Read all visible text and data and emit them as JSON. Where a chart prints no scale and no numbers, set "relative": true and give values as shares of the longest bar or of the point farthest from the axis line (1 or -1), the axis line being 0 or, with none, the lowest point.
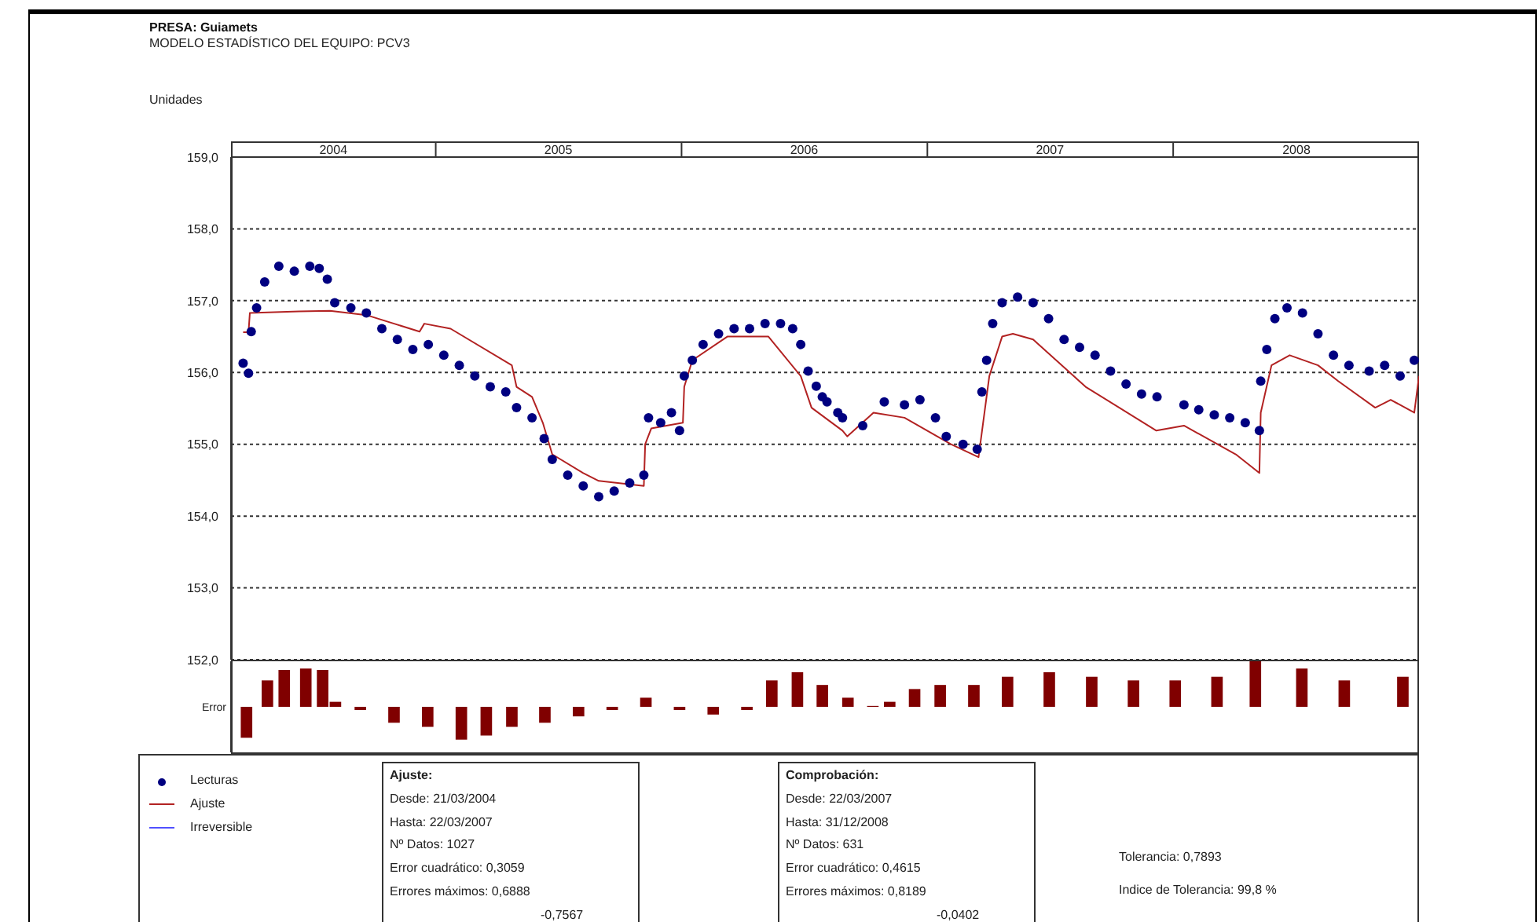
{
  "chart_data": [
    {
      "type": "scatter",
      "title": "PRESA: Guiamets",
      "subtitle": "MODELO ESTADÍSTICO DEL EQUIPO: PCV3",
      "ylabel": "Unidades",
      "xlim": [
        "2004-03-03",
        "2008-12-31"
      ],
      "xticks": [
        {
          "value": "2004-08-02",
          "label": "2004"
        },
        {
          "value": "2005-01-01",
          "label": null
        },
        {
          "value": "2005-07-02",
          "label": "2005"
        },
        {
          "value": "2006-01-01",
          "label": null
        },
        {
          "value": "2006-07-02",
          "label": "2006"
        },
        {
          "value": "2007-01-01",
          "label": null
        },
        {
          "value": "2007-07-02",
          "label": "2007"
        },
        {
          "value": "2008-01-01",
          "label": null
        },
        {
          "value": "2008-07-02",
          "label": "2008"
        }
      ],
      "ylim": [
        152,
        159
      ],
      "yticks": [
        {
          "value": 152,
          "label": "152,0"
        },
        {
          "value": 153,
          "label": "153,0"
        },
        {
          "value": 154,
          "label": "154,0"
        },
        {
          "value": 155,
          "label": "155,0"
        },
        {
          "value": 156,
          "label": "156,0"
        },
        {
          "value": 157,
          "label": "157,0"
        },
        {
          "value": 158,
          "label": "158,0"
        },
        {
          "value": 159,
          "label": "159,0"
        }
      ],
      "grid": "y",
      "legend": "bottom left",
      "annotations": [
        "Ajuste:\nDesde: 21/03/2004\nHasta: 22/03/2007\nNº Datos: 1027\nError cuadrático: 0,3059\nErrores máximos: 0,6888\n-0,7567",
        "Comprobación:\nDesde: 22/03/2007\nHasta: 31/12/2008\nNº Datos: 631\nError cuadrático: 0,4615\nErrores máximos: 0,8189\n-0,0402",
        "Tolerancia: 0,7893\nIndice de Tolerancia: 99,8 %"
      ],
      "series": [
        {
          "name": "Lecturas",
          "marker": "circle",
          "color": "#000080",
          "x": [
            "2004-03-21",
            "2004-03-29",
            "2004-04-02",
            "2004-04-10",
            "2004-04-22",
            "2004-05-13",
            "2004-06-05",
            "2004-06-28",
            "2004-07-12",
            "2004-07-24",
            "2004-08-04",
            "2004-08-28",
            "2004-09-20",
            "2004-10-13",
            "2004-11-05",
            "2004-11-28",
            "2004-12-21",
            "2005-01-13",
            "2005-02-05",
            "2005-02-28",
            "2005-03-23",
            "2005-04-15",
            "2005-05-01",
            "2005-05-24",
            "2005-06-11",
            "2005-06-23",
            "2005-07-16",
            "2005-08-08",
            "2005-08-31",
            "2005-09-23",
            "2005-10-16",
            "2005-11-06",
            "2005-11-13",
            "2005-12-01",
            "2005-12-17",
            "2005-12-29",
            "2006-01-05",
            "2006-01-17",
            "2006-02-02",
            "2006-02-25",
            "2006-03-20",
            "2006-04-12",
            "2006-05-05",
            "2006-05-28",
            "2006-06-15",
            "2006-06-27",
            "2006-07-08",
            "2006-07-20",
            "2006-07-29",
            "2006-08-05",
            "2006-08-21",
            "2006-08-28",
            "2006-09-27",
            "2006-10-29",
            "2006-11-28",
            "2006-12-21",
            "2007-01-13",
            "2007-01-29",
            "2007-02-23",
            "2007-03-16",
            "2007-03-23",
            "2007-03-30",
            "2007-04-08",
            "2007-04-22",
            "2007-05-15",
            "2007-06-07",
            "2007-06-30",
            "2007-07-23",
            "2007-08-15",
            "2007-09-07",
            "2007-09-30",
            "2007-10-23",
            "2007-11-15",
            "2007-12-08",
            "2008-01-17",
            "2008-02-08",
            "2008-03-02",
            "2008-03-25",
            "2008-04-17",
            "2008-05-08",
            "2008-05-10",
            "2008-05-19",
            "2008-05-31",
            "2008-06-18",
            "2008-07-11",
            "2008-08-03",
            "2008-08-26",
            "2008-09-18",
            "2008-10-18",
            "2008-11-10",
            "2008-12-03",
            "2008-12-24"
          ],
          "values": [
            156.13,
            155.99,
            156.57,
            156.9,
            157.26,
            157.48,
            157.41,
            157.48,
            157.45,
            157.3,
            156.97,
            156.9,
            156.83,
            156.61,
            156.46,
            156.32,
            156.39,
            156.24,
            156.1,
            155.95,
            155.8,
            155.73,
            155.51,
            155.37,
            155.08,
            154.79,
            154.57,
            154.42,
            154.27,
            154.35,
            154.46,
            154.57,
            155.37,
            155.3,
            155.44,
            155.19,
            155.95,
            156.17,
            156.39,
            156.54,
            156.61,
            156.61,
            156.68,
            156.68,
            156.61,
            156.39,
            156.02,
            155.81,
            155.66,
            155.59,
            155.44,
            155.37,
            155.26,
            155.59,
            155.55,
            155.62,
            155.37,
            155.11,
            155.0,
            154.93,
            155.73,
            156.17,
            156.68,
            156.97,
            157.05,
            156.97,
            156.75,
            156.46,
            156.35,
            156.24,
            156.02,
            155.84,
            155.7,
            155.66,
            155.55,
            155.48,
            155.41,
            155.37,
            155.3,
            155.19,
            155.88,
            156.32,
            156.75,
            156.9,
            156.83,
            156.54,
            156.24,
            156.1,
            156.02,
            156.1,
            155.95,
            156.17
          ]
        },
        {
          "name": "Ajuste",
          "type": "line",
          "color": "#b22222",
          "x": [
            "2004-03-21",
            "2004-03-29",
            "2004-03-31",
            "2004-06-12",
            "2004-07-28",
            "2004-09-20",
            "2004-12-08",
            "2004-12-15",
            "2005-01-23",
            "2005-04-24",
            "2005-05-01",
            "2005-05-24",
            "2005-06-09",
            "2005-06-23",
            "2005-08-08",
            "2005-08-31",
            "2005-11-06",
            "2005-11-08",
            "2005-11-17",
            "2006-01-03",
            "2006-01-05",
            "2006-01-17",
            "2006-03-10",
            "2006-05-10",
            "2006-06-27",
            "2006-07-13",
            "2006-08-28",
            "2006-09-04",
            "2006-10-13",
            "2006-11-28",
            "2007-02-05",
            "2007-03-18",
            "2007-04-03",
            "2007-04-22",
            "2007-05-08",
            "2007-06-07",
            "2007-08-24",
            "2007-12-07",
            "2008-01-17",
            "2008-04-03",
            "2008-05-08",
            "2008-05-10",
            "2008-05-26",
            "2008-06-22",
            "2008-08-03",
            "2008-09-02",
            "2008-10-27",
            "2008-11-19",
            "2008-12-24",
            "2008-12-31"
          ],
          "values": [
            156.56,
            156.56,
            156.83,
            156.85,
            156.86,
            156.8,
            156.57,
            156.68,
            156.61,
            156.1,
            155.8,
            155.66,
            155.3,
            154.86,
            154.6,
            154.49,
            154.42,
            155.0,
            155.22,
            155.3,
            155.8,
            156.17,
            156.5,
            156.5,
            155.95,
            155.51,
            155.19,
            155.11,
            155.44,
            155.37,
            155.0,
            154.82,
            155.95,
            156.5,
            156.54,
            156.46,
            155.8,
            155.19,
            155.26,
            154.86,
            154.6,
            155.44,
            156.1,
            156.24,
            156.1,
            155.88,
            155.51,
            155.62,
            155.44,
            155.95
          ]
        },
        {
          "name": "Irreversible",
          "type": "line",
          "color": "#5050ff"
        }
      ]
    },
    {
      "type": "bar",
      "relative": true,
      "ylabel": "Error",
      "color": "#800000",
      "xlim": [
        "2004-03-03",
        "2008-12-31"
      ],
      "x": [
        "2004-03-27",
        "2004-04-27",
        "2004-05-22",
        "2004-06-23",
        "2004-07-18",
        "2004-08-06",
        "2004-09-12",
        "2004-11-01",
        "2004-12-21",
        "2005-02-09",
        "2005-03-18",
        "2005-04-25",
        "2005-06-13",
        "2005-08-02",
        "2005-09-21",
        "2005-11-10",
        "2005-12-30",
        "2006-02-18",
        "2006-04-09",
        "2006-05-16",
        "2006-06-23",
        "2006-07-30",
        "2006-09-06",
        "2006-10-13",
        "2006-11-07",
        "2006-12-14",
        "2007-01-21",
        "2007-03-12",
        "2007-05-01",
        "2007-07-02",
        "2007-09-03",
        "2007-11-04",
        "2008-01-05",
        "2008-03-07",
        "2008-05-03",
        "2008-07-11",
        "2008-09-12",
        "2008-12-08"
      ],
      "values": [
        -0.68,
        0.58,
        0.81,
        0.84,
        0.81,
        0.11,
        -0.07,
        -0.35,
        -0.44,
        -0.72,
        -0.63,
        -0.44,
        -0.35,
        -0.21,
        -0.07,
        0.2,
        -0.07,
        -0.17,
        -0.07,
        0.58,
        0.76,
        0.48,
        0.2,
        0.02,
        0.11,
        0.39,
        0.48,
        0.48,
        0.66,
        0.76,
        0.66,
        0.58,
        0.58,
        0.66,
        1,
        0.84,
        0.58,
        0.66
      ]
    }
  ]
}
